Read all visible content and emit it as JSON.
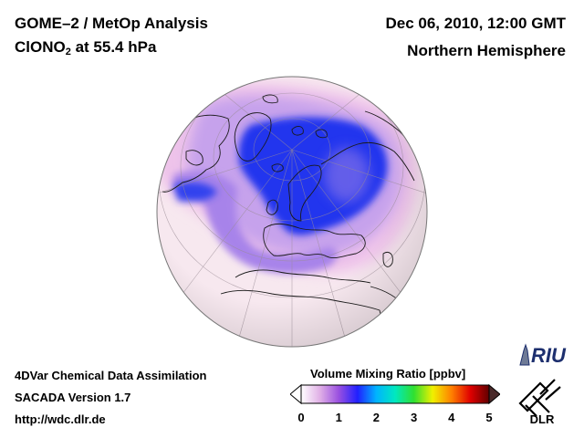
{
  "header": {
    "title": "GOME–2 / MetOp Analysis",
    "species_prefix": "ClONO",
    "species_sub": "2",
    "species_suffix": " at 55.4 hPa",
    "date": "Dec 06, 2010, 12:00 GMT",
    "region": "Northern Hemisphere"
  },
  "footer": {
    "line1": "4DVar Chemical Data Assimilation",
    "line2": "SACADA Version 1.7",
    "line3": "http://wdc.dlr.de"
  },
  "colorbar": {
    "title": "Volume Mixing Ratio [ppbv]",
    "ticks": [
      "0",
      "1",
      "2",
      "3",
      "4",
      "5"
    ],
    "range": [
      0,
      5
    ],
    "colors": [
      "#ffffff",
      "#e0b0e6",
      "#9a50e0",
      "#2020ff",
      "#00b4ff",
      "#00e8c0",
      "#30e030",
      "#f0f000",
      "#ff8000",
      "#e00000",
      "#600000"
    ]
  },
  "logos": {
    "riu": "RIU",
    "dlr": "DLR"
  },
  "colors": {
    "background": "#f7e8ef",
    "low": "#efc8ea",
    "mid": "#b28cea",
    "high": "#2233ee"
  }
}
